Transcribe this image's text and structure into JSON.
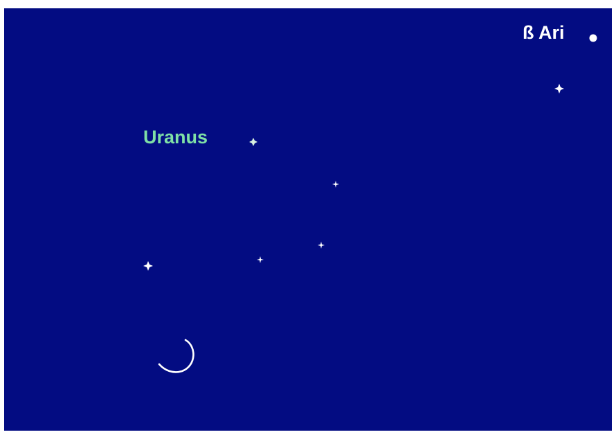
{
  "objects": [
    {
      "label": "Uranus"
    },
    {
      "label": "ß Ari"
    }
  ]
}
